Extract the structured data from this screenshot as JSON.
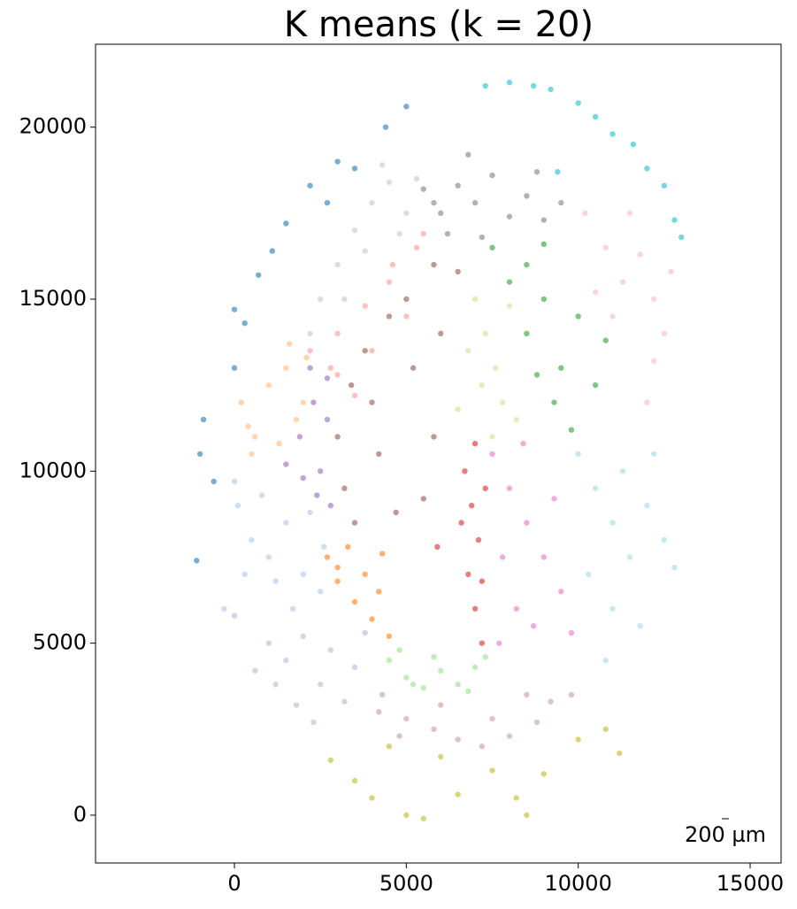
{
  "chart_data": {
    "type": "scatter",
    "title": "K means (k = 20)",
    "xlim": [
      -4040,
      15900
    ],
    "ylim": [
      -1390,
      22410
    ],
    "xticks": [
      0,
      5000,
      10000,
      15000
    ],
    "yticks": [
      0,
      5000,
      10000,
      15000,
      20000
    ],
    "grid": false,
    "scalebar_label": "200 µm",
    "series": [
      {
        "color": "#1f77b4",
        "x": [
          -900,
          -1000,
          -600,
          0,
          300,
          700,
          1100,
          1500,
          2200,
          3000,
          3500,
          4400,
          5000,
          -1100,
          0,
          2700
        ],
        "values": [
          11500,
          10500,
          9700,
          13000,
          14300,
          15700,
          16400,
          17200,
          18300,
          19000,
          18800,
          20000,
          20600,
          7400,
          14700,
          17800
        ]
      },
      {
        "color": "#17becf",
        "x": [
          7300,
          8000,
          8700,
          9200,
          10000,
          10500,
          11000,
          11600,
          12000,
          12500,
          12800,
          13000,
          9400
        ],
        "values": [
          21200,
          21300,
          21200,
          21100,
          20700,
          20300,
          19800,
          19500,
          18800,
          18300,
          17300,
          16800,
          18700
        ]
      },
      {
        "color": "#7f7f7f",
        "x": [
          5500,
          6000,
          6500,
          7000,
          7500,
          8000,
          8500,
          9000,
          9500,
          6200,
          7200,
          8800,
          5800,
          6800
        ],
        "values": [
          18200,
          17500,
          18300,
          17800,
          18600,
          17400,
          18000,
          17300,
          17800,
          16900,
          16800,
          18700,
          17800,
          19200
        ]
      },
      {
        "color": "#c7c7c7",
        "x": [
          3000,
          3500,
          4000,
          4500,
          5000,
          2500,
          3800,
          4800,
          2200,
          4300,
          3200,
          5300
        ],
        "values": [
          16000,
          17000,
          17800,
          18400,
          17500,
          15000,
          16400,
          16900,
          14000,
          18900,
          15000,
          18500
        ]
      },
      {
        "color": "#ff9896",
        "x": [
          2200,
          3000,
          3800,
          4500,
          5300,
          3000,
          4000,
          5000,
          2800,
          3500,
          4600,
          5500
        ],
        "values": [
          13500,
          14000,
          14800,
          15500,
          16500,
          12800,
          13500,
          14500,
          13000,
          12200,
          16000,
          16900
        ]
      },
      {
        "color": "#8c564b",
        "x": [
          3000,
          3200,
          3400,
          3800,
          4500,
          5000,
          5800,
          6500,
          4200,
          3500,
          4000,
          5200,
          6000,
          4700,
          5500,
          5800
        ],
        "values": [
          11000,
          9500,
          12500,
          13500,
          14500,
          15000,
          16000,
          15800,
          10500,
          8500,
          12000,
          13000,
          14000,
          8800,
          9200,
          11000
        ]
      },
      {
        "color": "#ff7f0e",
        "x": [
          2700,
          3000,
          3500,
          4000,
          3300,
          3800,
          4200,
          4500,
          3000,
          4300
        ],
        "values": [
          7500,
          6800,
          6200,
          5700,
          7800,
          7000,
          6500,
          5200,
          7200,
          7600
        ]
      },
      {
        "color": "#ffbb78",
        "x": [
          200,
          600,
          1000,
          1500,
          2000,
          500,
          1300,
          1800,
          400,
          1600,
          2100
        ],
        "values": [
          12000,
          11000,
          12500,
          13000,
          12000,
          10500,
          10800,
          11500,
          11300,
          13700,
          13300
        ]
      },
      {
        "color": "#9467bd",
        "x": [
          1900,
          2300,
          2700,
          2500,
          2000,
          2800,
          1500,
          2200,
          2700,
          2400
        ],
        "values": [
          11000,
          12000,
          11500,
          10000,
          9800,
          9000,
          10200,
          13000,
          12700,
          9300
        ]
      },
      {
        "color": "#aec7e8",
        "x": [
          100,
          500,
          1000,
          1500,
          2000,
          2500,
          800,
          1200,
          2200,
          300,
          1700,
          -300,
          0,
          2600
        ],
        "values": [
          9000,
          8000,
          7500,
          8500,
          7000,
          6500,
          9300,
          6800,
          8800,
          7000,
          6000,
          6000,
          9700,
          7800
        ]
      },
      {
        "color": "#c5b0d5",
        "x": [
          1000,
          1500,
          2000,
          2800,
          3500,
          2500,
          1800,
          3200,
          1200,
          3800,
          2300,
          600,
          0
        ],
        "values": [
          5000,
          4500,
          5200,
          4800,
          4300,
          3800,
          3200,
          3300,
          3800,
          5300,
          2700,
          4200,
          5800
        ]
      },
      {
        "color": "#98df8a",
        "x": [
          4500,
          5000,
          5500,
          6000,
          6500,
          7000,
          7300,
          4800,
          5800,
          6800,
          5200
        ],
        "values": [
          4500,
          4000,
          3700,
          4200,
          3800,
          4300,
          4600,
          4800,
          4600,
          3600,
          3800
        ]
      },
      {
        "color": "#c49c94",
        "x": [
          4200,
          5000,
          5800,
          6500,
          7200,
          8000,
          8800,
          9200,
          9800,
          6000,
          7500,
          4800,
          8500,
          4300
        ],
        "values": [
          3000,
          2800,
          2500,
          2200,
          2000,
          2300,
          2700,
          3300,
          3500,
          3200,
          2800,
          2300,
          3500,
          3500
        ]
      },
      {
        "color": "#bcbd22",
        "x": [
          2800,
          3500,
          4000,
          4500,
          5000,
          5500,
          6500,
          7500,
          8200,
          9000,
          10000,
          10800,
          11200,
          6000,
          8500
        ],
        "values": [
          1600,
          1000,
          500,
          2000,
          0,
          -100,
          600,
          1300,
          500,
          1200,
          2200,
          2500,
          1800,
          1700,
          0
        ]
      },
      {
        "color": "#d62728",
        "x": [
          6700,
          6900,
          7100,
          6800,
          7000,
          7200,
          6600,
          7300,
          7000,
          7200,
          5900
        ],
        "values": [
          10000,
          9000,
          8000,
          7000,
          6000,
          5000,
          8500,
          9500,
          10800,
          6800,
          7800
        ]
      },
      {
        "color": "#e377c2",
        "x": [
          7500,
          8000,
          8500,
          9000,
          9500,
          8200,
          7800,
          8700,
          9300,
          7700,
          9800,
          8400
        ],
        "values": [
          10500,
          9500,
          8500,
          7500,
          6500,
          6000,
          7500,
          5500,
          9200,
          5000,
          5300,
          10800
        ]
      },
      {
        "color": "#dbdb8d",
        "x": [
          7000,
          7300,
          7600,
          7800,
          7500,
          8000,
          7200,
          8200,
          6800,
          6500
        ],
        "values": [
          15000,
          14000,
          13000,
          12000,
          11000,
          14800,
          12500,
          11500,
          13500,
          11800
        ]
      },
      {
        "color": "#2ca02c",
        "x": [
          7500,
          8000,
          8500,
          9000,
          8500,
          9500,
          10000,
          9300,
          10500,
          9800,
          10800,
          8800,
          9000
        ],
        "values": [
          16500,
          15500,
          16000,
          15000,
          14000,
          13000,
          14500,
          12000,
          12500,
          11200,
          13800,
          12800,
          16600
        ]
      },
      {
        "color": "#f7b6d2",
        "x": [
          10200,
          10800,
          11300,
          11800,
          12200,
          12500,
          11000,
          12700,
          11500,
          12000,
          10500,
          12200
        ],
        "values": [
          17500,
          16500,
          15500,
          16300,
          15000,
          14000,
          14500,
          15800,
          17500,
          12000,
          15200,
          13200
        ]
      },
      {
        "color": "#9edae5",
        "x": [
          10000,
          10500,
          11000,
          11500,
          12000,
          12500,
          11000,
          10300,
          11800,
          12800,
          10800,
          12200,
          11300
        ],
        "values": [
          10500,
          9500,
          8500,
          7500,
          9000,
          8000,
          6000,
          7000,
          5500,
          7200,
          4500,
          10500,
          10000
        ]
      }
    ]
  }
}
